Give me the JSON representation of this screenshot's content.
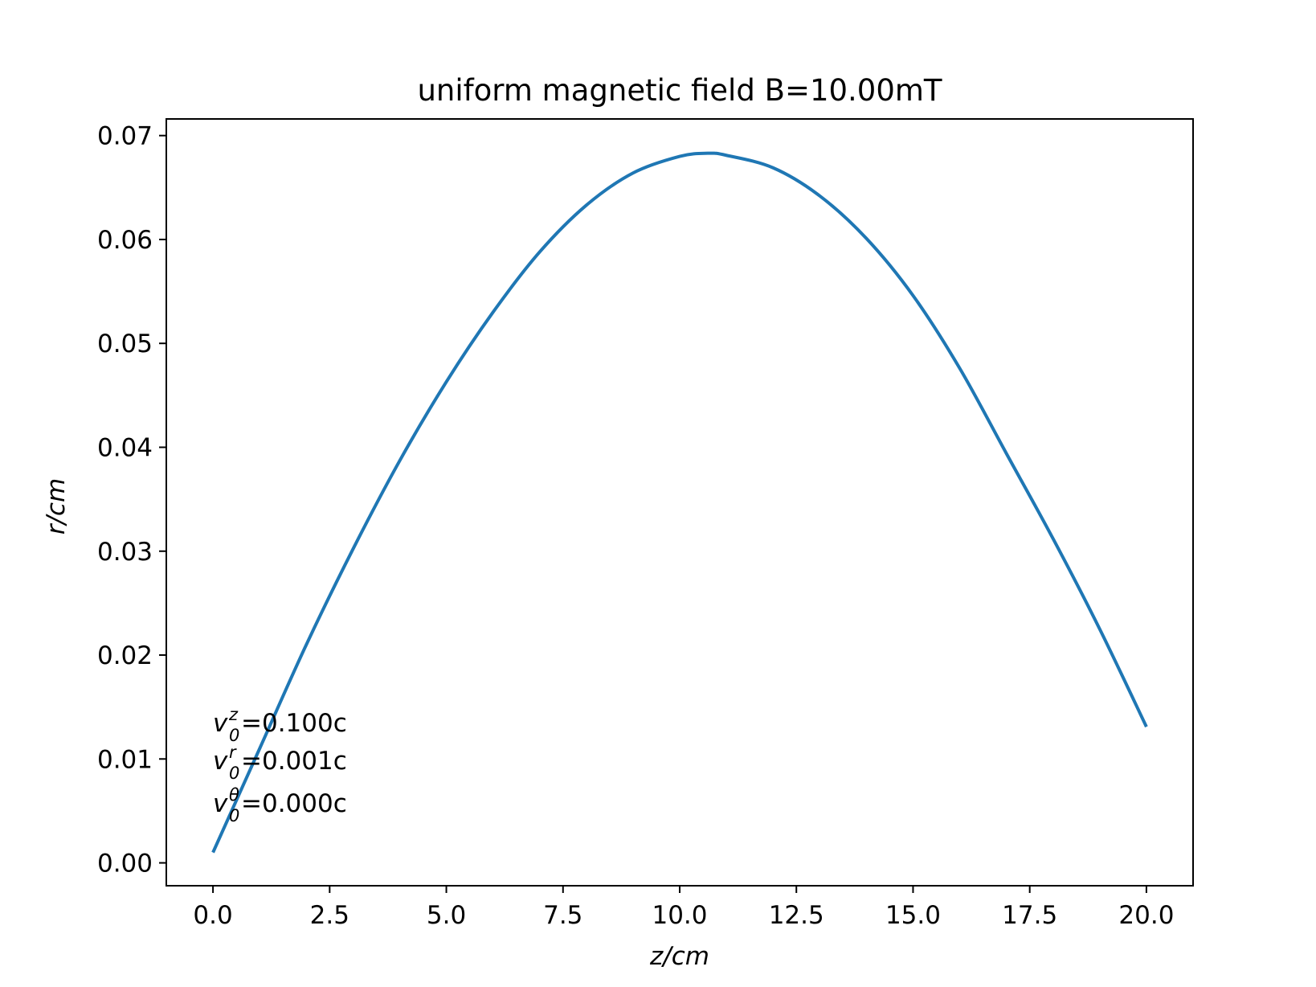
{
  "chart_data": {
    "type": "line",
    "title": "uniform magnetic field B=10.00mT",
    "xlabel": "z/cm",
    "ylabel": "r/cm",
    "xlim": [
      -1.0,
      21.0
    ],
    "ylim": [
      -0.0022,
      0.0716
    ],
    "x_ticks": [
      0,
      2.5,
      5,
      7.5,
      10,
      12.5,
      15,
      17.5,
      20
    ],
    "x_tick_labels": [
      "0.0",
      "2.5",
      "5.0",
      "7.5",
      "10.0",
      "12.5",
      "15.0",
      "17.5",
      "20.0"
    ],
    "y_ticks": [
      0,
      0.01,
      0.02,
      0.03,
      0.04,
      0.05,
      0.06,
      0.07
    ],
    "y_tick_labels": [
      "0.00",
      "0.01",
      "0.02",
      "0.03",
      "0.04",
      "0.05",
      "0.06",
      "0.07"
    ],
    "grid": false,
    "legend": null,
    "series": [
      {
        "color": "#1f77b4",
        "x": [
          0,
          1,
          2,
          3,
          4,
          5,
          6,
          7,
          8,
          9,
          10,
          10.6,
          11,
          12,
          13,
          14,
          15,
          16,
          17,
          18,
          19,
          20
        ],
        "y": [
          0.001,
          0.011,
          0.021,
          0.0302,
          0.0387,
          0.0463,
          0.053,
          0.0588,
          0.0633,
          0.0664,
          0.068,
          0.0683,
          0.0681,
          0.0669,
          0.0642,
          0.0601,
          0.0546,
          0.0476,
          0.0394,
          0.0312,
          0.0225,
          0.0131
        ]
      }
    ],
    "annotations": [
      {
        "var": "v",
        "sub": "0",
        "sup": "z",
        "rest": "=0.100c"
      },
      {
        "var": "v",
        "sub": "0",
        "sup": "r",
        "rest": "=0.001c"
      },
      {
        "var": "v",
        "sub": "0",
        "sup": "θ",
        "rest": "=0.000c"
      }
    ]
  }
}
